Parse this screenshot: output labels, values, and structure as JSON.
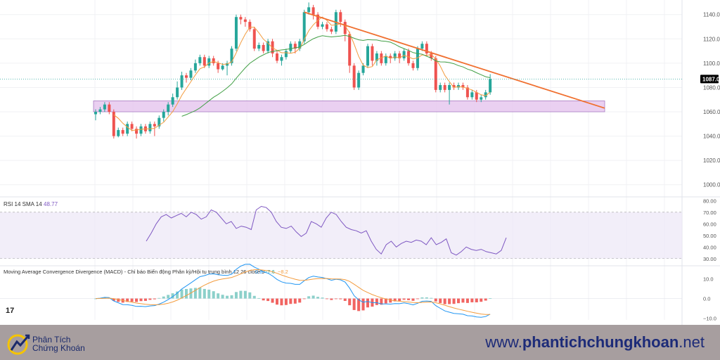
{
  "chart_data": [
    {
      "type": "candlestick",
      "price_labels": [
        "1140.0",
        "1120.0",
        "1100.0",
        "1080.0",
        "1060.0",
        "1040.0",
        "1020.0",
        "1000.0"
      ],
      "current_price": "1087.0",
      "ylim": [
        990,
        1152
      ],
      "support_zone": [
        1060,
        1069
      ],
      "trendline": [
        [
          0,
          1142
        ],
        [
          62.5,
          1063
        ]
      ],
      "candles": [
        [
          1058,
          1060,
          1053,
          1062
        ],
        [
          1060,
          1062,
          1058,
          1064
        ],
        [
          1062,
          1066,
          1060,
          1068
        ],
        [
          1066,
          1060,
          1058,
          1068
        ],
        [
          1060,
          1040,
          1038,
          1062
        ],
        [
          1040,
          1045,
          1039,
          1047
        ],
        [
          1045,
          1042,
          1040,
          1047
        ],
        [
          1042,
          1050,
          1040,
          1052
        ],
        [
          1050,
          1046,
          1044,
          1052
        ],
        [
          1046,
          1042,
          1038,
          1048
        ],
        [
          1042,
          1048,
          1040,
          1050
        ],
        [
          1048,
          1044,
          1042,
          1050
        ],
        [
          1044,
          1050,
          1042,
          1052
        ],
        [
          1050,
          1048,
          1040,
          1052
        ],
        [
          1048,
          1055,
          1046,
          1057
        ],
        [
          1055,
          1060,
          1052,
          1062
        ],
        [
          1060,
          1066,
          1057,
          1068
        ],
        [
          1066,
          1072,
          1064,
          1075
        ],
        [
          1072,
          1080,
          1070,
          1085
        ],
        [
          1080,
          1090,
          1078,
          1093
        ],
        [
          1090,
          1088,
          1084,
          1092
        ],
        [
          1088,
          1094,
          1086,
          1096
        ],
        [
          1094,
          1100,
          1092,
          1103
        ],
        [
          1100,
          1105,
          1098,
          1107
        ],
        [
          1105,
          1098,
          1096,
          1107
        ],
        [
          1098,
          1104,
          1096,
          1106
        ],
        [
          1104,
          1100,
          1098,
          1106
        ],
        [
          1100,
          1095,
          1092,
          1102
        ],
        [
          1095,
          1098,
          1094,
          1100
        ],
        [
          1098,
          1100,
          1090,
          1102
        ],
        [
          1100,
          1112,
          1098,
          1114
        ],
        [
          1112,
          1138,
          1110,
          1140
        ],
        [
          1138,
          1136,
          1132,
          1140
        ],
        [
          1136,
          1134,
          1130,
          1138
        ],
        [
          1134,
          1128,
          1126,
          1136
        ],
        [
          1128,
          1112,
          1110,
          1130
        ],
        [
          1112,
          1115,
          1110,
          1117
        ],
        [
          1115,
          1110,
          1108,
          1117
        ],
        [
          1110,
          1118,
          1108,
          1120
        ],
        [
          1118,
          1108,
          1105,
          1120
        ],
        [
          1108,
          1102,
          1100,
          1110
        ],
        [
          1102,
          1105,
          1098,
          1107
        ],
        [
          1105,
          1110,
          1103,
          1112
        ],
        [
          1110,
          1116,
          1108,
          1118
        ],
        [
          1116,
          1112,
          1108,
          1118
        ],
        [
          1112,
          1118,
          1110,
          1120
        ],
        [
          1118,
          1142,
          1116,
          1144
        ],
        [
          1142,
          1146,
          1140,
          1150
        ],
        [
          1146,
          1140,
          1136,
          1148
        ],
        [
          1140,
          1130,
          1128,
          1142
        ],
        [
          1130,
          1132,
          1128,
          1134
        ],
        [
          1132,
          1128,
          1126,
          1134
        ],
        [
          1128,
          1126,
          1124,
          1130
        ],
        [
          1126,
          1142,
          1124,
          1144
        ],
        [
          1142,
          1134,
          1130,
          1144
        ],
        [
          1134,
          1124,
          1118,
          1136
        ],
        [
          1124,
          1098,
          1092,
          1126
        ],
        [
          1098,
          1080,
          1078,
          1100
        ],
        [
          1080,
          1092,
          1078,
          1094
        ],
        [
          1092,
          1098,
          1090,
          1100
        ],
        [
          1098,
          1114,
          1096,
          1116
        ],
        [
          1114,
          1102,
          1098,
          1116
        ],
        [
          1102,
          1108,
          1098,
          1110
        ],
        [
          1108,
          1100,
          1098,
          1110
        ],
        [
          1100,
          1106,
          1098,
          1108
        ],
        [
          1106,
          1104,
          1100,
          1108
        ],
        [
          1104,
          1108,
          1102,
          1110
        ],
        [
          1108,
          1104,
          1100,
          1110
        ],
        [
          1104,
          1110,
          1102,
          1112
        ],
        [
          1110,
          1100,
          1098,
          1112
        ],
        [
          1100,
          1096,
          1094,
          1102
        ],
        [
          1096,
          1112,
          1094,
          1114
        ],
        [
          1112,
          1116,
          1110,
          1118
        ],
        [
          1116,
          1108,
          1106,
          1118
        ],
        [
          1108,
          1104,
          1102,
          1110
        ],
        [
          1104,
          1078,
          1076,
          1106
        ],
        [
          1078,
          1082,
          1076,
          1084
        ],
        [
          1082,
          1078,
          1076,
          1084
        ],
        [
          1078,
          1082,
          1066,
          1084
        ],
        [
          1082,
          1080,
          1078,
          1084
        ],
        [
          1080,
          1082,
          1078,
          1084
        ],
        [
          1082,
          1080,
          1078,
          1084
        ],
        [
          1080,
          1072,
          1070,
          1082
        ],
        [
          1072,
          1076,
          1070,
          1078
        ],
        [
          1076,
          1070,
          1068,
          1078
        ],
        [
          1070,
          1072,
          1068,
          1074
        ],
        [
          1072,
          1076,
          1070,
          1078
        ],
        [
          1076,
          1087,
          1074,
          1091
        ]
      ],
      "rsi_title": "RSI 14 SMA 14",
      "rsi_value": "48.77",
      "rsi_labels": [
        "80.00",
        "70.00",
        "60.00",
        "50.00",
        "40.00",
        "30.00"
      ],
      "rsi_band": [
        30,
        70
      ],
      "rsi_values": [
        45,
        52,
        60,
        66,
        68,
        65,
        67,
        69,
        66,
        70,
        68,
        64,
        66,
        72,
        70,
        65,
        60,
        62,
        56,
        58,
        57,
        55,
        72,
        75,
        74,
        70,
        62,
        57,
        56,
        58,
        53,
        49,
        52,
        62,
        60,
        57,
        65,
        70,
        68,
        62,
        57,
        55,
        54,
        52,
        54,
        45,
        38,
        34,
        42,
        45,
        40,
        43,
        45,
        44,
        46,
        45,
        42,
        48,
        42,
        44,
        47,
        35,
        33,
        36,
        40,
        38,
        37,
        38,
        36,
        35,
        34,
        37,
        48
      ],
      "macd_title": "Moving Average Convergence Divergence (MACD) - Chỉ báo Biến động Phân kỳ/Hội tụ trung bình 12 26 close 9",
      "macd_values": [
        "0.6",
        "−7.6",
        "−8.2"
      ],
      "macd_labels": [
        "10.0",
        "0.0",
        "−10.0"
      ]
    }
  ],
  "footer": {
    "brand_line1": "Phân Tích",
    "brand_line2": "Chứng Khoán",
    "url_prefix": "www.",
    "url_bold": "phantichchungkhoan",
    "url_suffix": ".net"
  },
  "colors": {
    "up": "#26a69a",
    "down": "#ef5350",
    "trendline": "#f07030",
    "zone_fill": "#e6c8ee",
    "zone_stroke": "#a97cc3",
    "ma_orange": "#f39c3e",
    "ma_green": "#43a047",
    "rsi_line": "#7e57c2",
    "footer_bg": "#a79e9f",
    "url": "#1d2b78"
  }
}
